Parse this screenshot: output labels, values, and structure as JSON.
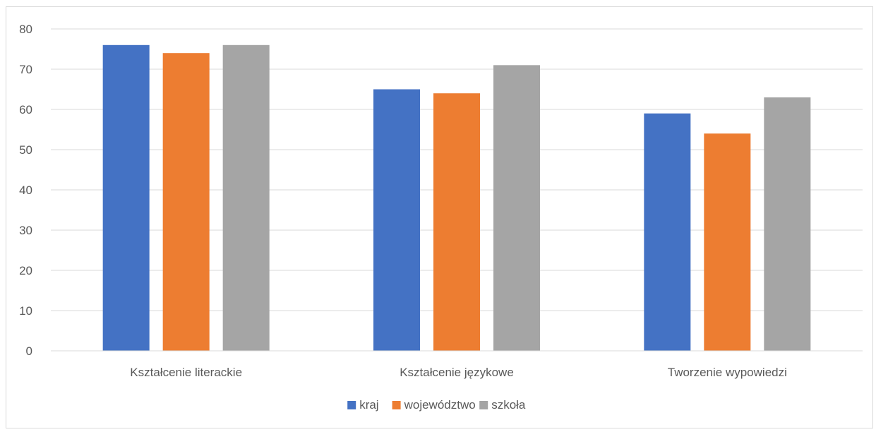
{
  "chart_data": {
    "type": "bar",
    "categories": [
      "Kształcenie literackie",
      "Kształcenie językowe",
      "Tworzenie wypowiedzi"
    ],
    "series": [
      {
        "name": "kraj",
        "values": [
          76,
          65,
          59
        ],
        "color": "#4472c4"
      },
      {
        "name": "województwo",
        "values": [
          74,
          64,
          54
        ],
        "color": "#ed7d31"
      },
      {
        "name": "szkoła",
        "values": [
          76,
          71,
          63
        ],
        "color": "#a5a5a5"
      }
    ],
    "ylim": [
      0,
      80
    ],
    "yticks": [
      0,
      10,
      20,
      30,
      40,
      50,
      60,
      70,
      80
    ],
    "grid": true,
    "legend": "bottom",
    "gridline_color": "#d9d9d9",
    "text_color": "#595959"
  }
}
